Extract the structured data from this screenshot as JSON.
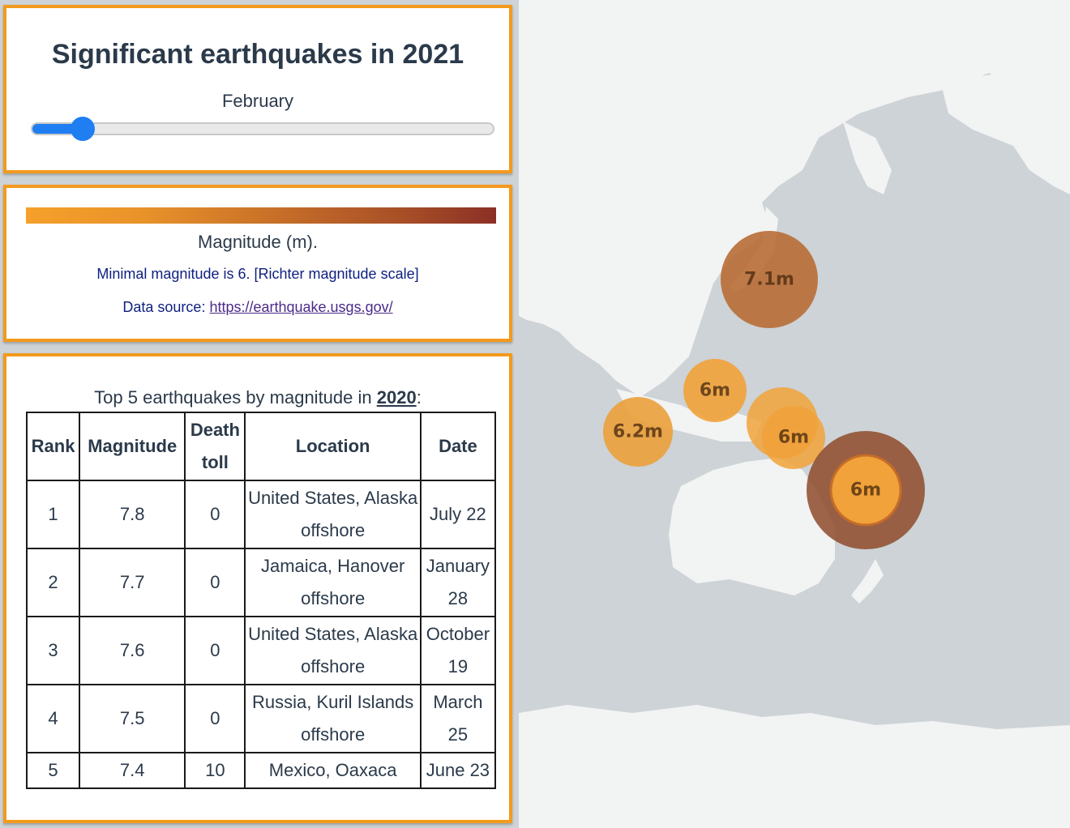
{
  "header": {
    "title": "Significant earthquakes in 2021",
    "month": "February",
    "slider": {
      "value_fraction": 0.11
    }
  },
  "legend": {
    "label": "Magnitude (m).",
    "note": "Minimal magnitude is 6. [Richter magnitude scale]",
    "source_prefix": "Data source: ",
    "source_link": "https://earthquake.usgs.gov/",
    "colors": {
      "low": "#f6a02b",
      "high": "#8b3025"
    }
  },
  "table": {
    "caption_prefix": "Top 5 earthquakes by magnitude in ",
    "caption_year": "2020",
    "caption_suffix": ":",
    "headers": {
      "rank": "Rank",
      "magnitude": "Magnitude",
      "death_toll": "Death toll",
      "location": "Location",
      "date": "Date"
    },
    "rows": [
      {
        "rank": "1",
        "magnitude": "7.8",
        "death_toll": "0",
        "location": "United States, Alaska offshore",
        "date": "July 22"
      },
      {
        "rank": "2",
        "magnitude": "7.7",
        "death_toll": "0",
        "location": "Jamaica, Hanover offshore",
        "date": "January 28"
      },
      {
        "rank": "3",
        "magnitude": "7.6",
        "death_toll": "0",
        "location": "United States, Alaska offshore",
        "date": "October 19"
      },
      {
        "rank": "4",
        "magnitude": "7.5",
        "death_toll": "0",
        "location": "Russia, Kuril Islands offshore",
        "date": "March 25"
      },
      {
        "rank": "5",
        "magnitude": "7.4",
        "death_toll": "10",
        "location": "Mexico, Oaxaca",
        "date": "June 23"
      }
    ]
  },
  "map": {
    "colors": {
      "ocean": "#cdd3d6",
      "land": "#f2f3f3"
    },
    "markers": [
      {
        "label": "7.1m",
        "magnitude": 7.1,
        "color": "#b86d35"
      },
      {
        "label": "6m",
        "magnitude": 6.0,
        "color": "#f1a23a"
      },
      {
        "label": "6.2m",
        "magnitude": 6.2,
        "color": "#eba03b"
      },
      {
        "label": "6m",
        "magnitude": 6.0,
        "color": "#f1a23a"
      },
      {
        "label": "6m",
        "magnitude": 6.0,
        "color": "#f1a23a"
      },
      {
        "label": "6m",
        "magnitude": 6.0,
        "color": "#f1a23a",
        "selected": true,
        "halo_color": "#8e4a2a"
      }
    ]
  }
}
